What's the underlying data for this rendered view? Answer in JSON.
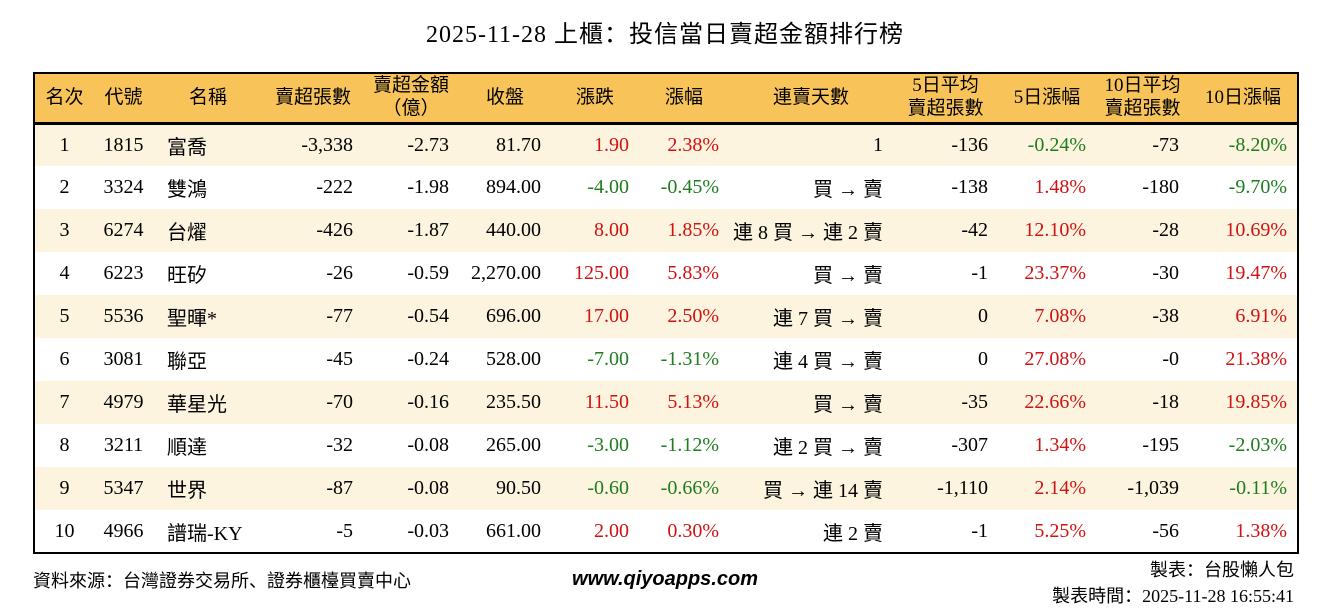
{
  "title": "2025-11-28 上櫃：投信當日賣超金額排行榜",
  "colors": {
    "up": "#d01212",
    "down": "#1e7d1e",
    "header_bg": "#f8c45a",
    "row_alt_bg": "#fcf4de"
  },
  "table": {
    "headers": [
      "名次",
      "代號",
      "名稱",
      "賣超張數",
      "賣超金額\n（億）",
      "收盤",
      "漲跌",
      "漲幅",
      "連賣天數",
      "5日平均\n賣超張數",
      "5日漲幅",
      "10日平均\n賣超張數",
      "10日漲幅"
    ],
    "column_keys": [
      "rank",
      "code",
      "name",
      "net-sell-shares",
      "net-sell-amount-100m",
      "close",
      "change",
      "change-pct",
      "consecutive-sell-days",
      "avg5-net-sell-shares",
      "pct5-change",
      "avg10-net-sell-shares",
      "pct10-change"
    ],
    "rows": [
      {
        "cells": [
          {
            "t": "1"
          },
          {
            "t": "1815"
          },
          {
            "t": "富喬"
          },
          {
            "t": "-3,338"
          },
          {
            "t": "-2.73"
          },
          {
            "t": "81.70"
          },
          {
            "t": "1.90",
            "c": "up"
          },
          {
            "t": "2.38%",
            "c": "up"
          },
          {
            "t": "1"
          },
          {
            "t": "-136"
          },
          {
            "t": "-0.24%",
            "c": "down"
          },
          {
            "t": "-73"
          },
          {
            "t": "-8.20%",
            "c": "down"
          }
        ]
      },
      {
        "cells": [
          {
            "t": "2"
          },
          {
            "t": "3324"
          },
          {
            "t": "雙鴻"
          },
          {
            "t": "-222"
          },
          {
            "t": "-1.98"
          },
          {
            "t": "894.00"
          },
          {
            "t": "-4.00",
            "c": "down"
          },
          {
            "t": "-0.45%",
            "c": "down"
          },
          {
            "t": "買 → 賣"
          },
          {
            "t": "-138"
          },
          {
            "t": "1.48%",
            "c": "up"
          },
          {
            "t": "-180"
          },
          {
            "t": "-9.70%",
            "c": "down"
          }
        ]
      },
      {
        "cells": [
          {
            "t": "3"
          },
          {
            "t": "6274"
          },
          {
            "t": "台燿"
          },
          {
            "t": "-426"
          },
          {
            "t": "-1.87"
          },
          {
            "t": "440.00"
          },
          {
            "t": "8.00",
            "c": "up"
          },
          {
            "t": "1.85%",
            "c": "up"
          },
          {
            "t": "連 8 買 → 連 2 賣"
          },
          {
            "t": "-42"
          },
          {
            "t": "12.10%",
            "c": "up"
          },
          {
            "t": "-28"
          },
          {
            "t": "10.69%",
            "c": "up"
          }
        ]
      },
      {
        "cells": [
          {
            "t": "4"
          },
          {
            "t": "6223"
          },
          {
            "t": "旺矽"
          },
          {
            "t": "-26"
          },
          {
            "t": "-0.59"
          },
          {
            "t": "2,270.00"
          },
          {
            "t": "125.00",
            "c": "up"
          },
          {
            "t": "5.83%",
            "c": "up"
          },
          {
            "t": "買 → 賣"
          },
          {
            "t": "-1"
          },
          {
            "t": "23.37%",
            "c": "up"
          },
          {
            "t": "-30"
          },
          {
            "t": "19.47%",
            "c": "up"
          }
        ]
      },
      {
        "cells": [
          {
            "t": "5"
          },
          {
            "t": "5536"
          },
          {
            "t": "聖暉*"
          },
          {
            "t": "-77"
          },
          {
            "t": "-0.54"
          },
          {
            "t": "696.00"
          },
          {
            "t": "17.00",
            "c": "up"
          },
          {
            "t": "2.50%",
            "c": "up"
          },
          {
            "t": "連 7 買 → 賣"
          },
          {
            "t": "0"
          },
          {
            "t": "7.08%",
            "c": "up"
          },
          {
            "t": "-38"
          },
          {
            "t": "6.91%",
            "c": "up"
          }
        ]
      },
      {
        "cells": [
          {
            "t": "6"
          },
          {
            "t": "3081"
          },
          {
            "t": "聯亞"
          },
          {
            "t": "-45"
          },
          {
            "t": "-0.24"
          },
          {
            "t": "528.00"
          },
          {
            "t": "-7.00",
            "c": "down"
          },
          {
            "t": "-1.31%",
            "c": "down"
          },
          {
            "t": "連 4 買 → 賣"
          },
          {
            "t": "0"
          },
          {
            "t": "27.08%",
            "c": "up"
          },
          {
            "t": "-0"
          },
          {
            "t": "21.38%",
            "c": "up"
          }
        ]
      },
      {
        "cells": [
          {
            "t": "7"
          },
          {
            "t": "4979"
          },
          {
            "t": "華星光"
          },
          {
            "t": "-70"
          },
          {
            "t": "-0.16"
          },
          {
            "t": "235.50"
          },
          {
            "t": "11.50",
            "c": "up"
          },
          {
            "t": "5.13%",
            "c": "up"
          },
          {
            "t": "買 → 賣"
          },
          {
            "t": "-35"
          },
          {
            "t": "22.66%",
            "c": "up"
          },
          {
            "t": "-18"
          },
          {
            "t": "19.85%",
            "c": "up"
          }
        ]
      },
      {
        "cells": [
          {
            "t": "8"
          },
          {
            "t": "3211"
          },
          {
            "t": "順達"
          },
          {
            "t": "-32"
          },
          {
            "t": "-0.08"
          },
          {
            "t": "265.00"
          },
          {
            "t": "-3.00",
            "c": "down"
          },
          {
            "t": "-1.12%",
            "c": "down"
          },
          {
            "t": "連 2 買 → 賣"
          },
          {
            "t": "-307"
          },
          {
            "t": "1.34%",
            "c": "up"
          },
          {
            "t": "-195"
          },
          {
            "t": "-2.03%",
            "c": "down"
          }
        ]
      },
      {
        "cells": [
          {
            "t": "9"
          },
          {
            "t": "5347"
          },
          {
            "t": "世界"
          },
          {
            "t": "-87"
          },
          {
            "t": "-0.08"
          },
          {
            "t": "90.50"
          },
          {
            "t": "-0.60",
            "c": "down"
          },
          {
            "t": "-0.66%",
            "c": "down"
          },
          {
            "t": "買 → 連 14 賣"
          },
          {
            "t": "-1,110"
          },
          {
            "t": "2.14%",
            "c": "up"
          },
          {
            "t": "-1,039"
          },
          {
            "t": "-0.11%",
            "c": "down"
          }
        ]
      },
      {
        "cells": [
          {
            "t": "10"
          },
          {
            "t": "4966"
          },
          {
            "t": "譜瑞-KY"
          },
          {
            "t": "-5"
          },
          {
            "t": "-0.03"
          },
          {
            "t": "661.00"
          },
          {
            "t": "2.00",
            "c": "up"
          },
          {
            "t": "0.30%",
            "c": "up"
          },
          {
            "t": "連 2 賣"
          },
          {
            "t": "-1"
          },
          {
            "t": "5.25%",
            "c": "up"
          },
          {
            "t": "-56"
          },
          {
            "t": "1.38%",
            "c": "up"
          }
        ]
      }
    ]
  },
  "footer": {
    "source": "資料來源：台灣證券交易所、證券櫃檯買賣中心",
    "website": "www.qiyoapps.com",
    "made_by": "製表：台股懶人包",
    "made_at": "製表時間：2025-11-28 16:55:41"
  },
  "chart_data": {
    "type": "table",
    "title": "2025-11-28 上櫃：投信當日賣超金額排行榜",
    "columns": [
      "名次",
      "代號",
      "名稱",
      "賣超張數",
      "賣超金額（億）",
      "收盤",
      "漲跌",
      "漲幅",
      "連賣天數",
      "5日平均賣超張數",
      "5日漲幅",
      "10日平均賣超張數",
      "10日漲幅"
    ],
    "rows": [
      [
        "1",
        "1815",
        "富喬",
        "-3,338",
        "-2.73",
        "81.70",
        "1.90",
        "2.38%",
        "1",
        "-136",
        "-0.24%",
        "-73",
        "-8.20%"
      ],
      [
        "2",
        "3324",
        "雙鴻",
        "-222",
        "-1.98",
        "894.00",
        "-4.00",
        "-0.45%",
        "買 → 賣",
        "-138",
        "1.48%",
        "-180",
        "-9.70%"
      ],
      [
        "3",
        "6274",
        "台燿",
        "-426",
        "-1.87",
        "440.00",
        "8.00",
        "1.85%",
        "連 8 買 → 連 2 賣",
        "-42",
        "12.10%",
        "-28",
        "10.69%"
      ],
      [
        "4",
        "6223",
        "旺矽",
        "-26",
        "-0.59",
        "2,270.00",
        "125.00",
        "5.83%",
        "買 → 賣",
        "-1",
        "23.37%",
        "-30",
        "19.47%"
      ],
      [
        "5",
        "5536",
        "聖暉*",
        "-77",
        "-0.54",
        "696.00",
        "17.00",
        "2.50%",
        "連 7 買 → 賣",
        "0",
        "7.08%",
        "-38",
        "6.91%"
      ],
      [
        "6",
        "3081",
        "聯亞",
        "-45",
        "-0.24",
        "528.00",
        "-7.00",
        "-1.31%",
        "連 4 買 → 賣",
        "0",
        "27.08%",
        "-0",
        "21.38%"
      ],
      [
        "7",
        "4979",
        "華星光",
        "-70",
        "-0.16",
        "235.50",
        "11.50",
        "5.13%",
        "買 → 賣",
        "-35",
        "22.66%",
        "-18",
        "19.85%"
      ],
      [
        "8",
        "3211",
        "順達",
        "-32",
        "-0.08",
        "265.00",
        "-3.00",
        "-1.12%",
        "連 2 買 → 賣",
        "-307",
        "1.34%",
        "-195",
        "-2.03%"
      ],
      [
        "9",
        "5347",
        "世界",
        "-87",
        "-0.08",
        "90.50",
        "-0.60",
        "-0.66%",
        "買 → 連 14 賣",
        "-1,110",
        "2.14%",
        "-1,039",
        "-0.11%"
      ],
      [
        "10",
        "4966",
        "譜瑞-KY",
        "-5",
        "-0.03",
        "661.00",
        "2.00",
        "0.30%",
        "連 2 賣",
        "-1",
        "5.25%",
        "-56",
        "1.38%"
      ]
    ],
    "color_coding": "positive price changes red, negative price changes green"
  }
}
